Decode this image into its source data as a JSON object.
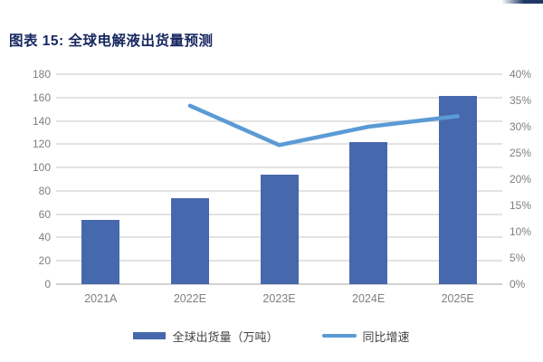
{
  "page": {
    "title": "图表 15: 全球电解液出货量预测",
    "title_color": "#182861",
    "corner_strip_color": "#1f3864",
    "background_color": "#ffffff"
  },
  "chart_data": {
    "type": "bar",
    "subtype": "combo bar + line, dual axis",
    "title": "全球电解液出货量预测",
    "categories": [
      "2021A",
      "2022E",
      "2023E",
      "2024E",
      "2025E"
    ],
    "series": [
      {
        "name": "全球出货量（万吨）",
        "type": "bar",
        "axis": "left",
        "values": [
          55,
          74,
          94,
          122,
          161
        ],
        "color": "#4668ac"
      },
      {
        "name": "同比增速",
        "type": "line",
        "axis": "right",
        "start_category_index": 1,
        "values_pct": [
          34,
          26.5,
          30,
          32
        ],
        "color": "#5b9bd5"
      }
    ],
    "left_axis": {
      "min": 0,
      "max": 180,
      "step": 20,
      "labels": [
        "0",
        "20",
        "40",
        "60",
        "80",
        "100",
        "120",
        "140",
        "160",
        "180"
      ]
    },
    "right_axis": {
      "min": 0,
      "max": 40,
      "step": 5,
      "labels": [
        "0%",
        "5%",
        "10%",
        "15%",
        "20%",
        "25%",
        "30%",
        "35%",
        "40%"
      ]
    },
    "grid": "horizontal gridlines on, light gray",
    "grid_color": "#e3e3e3",
    "label_color": "#7f7f7f",
    "legend_position": "bottom-center"
  },
  "legend": {
    "items": [
      {
        "label": "全球出货量（万吨）",
        "swatch": "bar"
      },
      {
        "label": "同比增速",
        "swatch": "line"
      }
    ]
  }
}
